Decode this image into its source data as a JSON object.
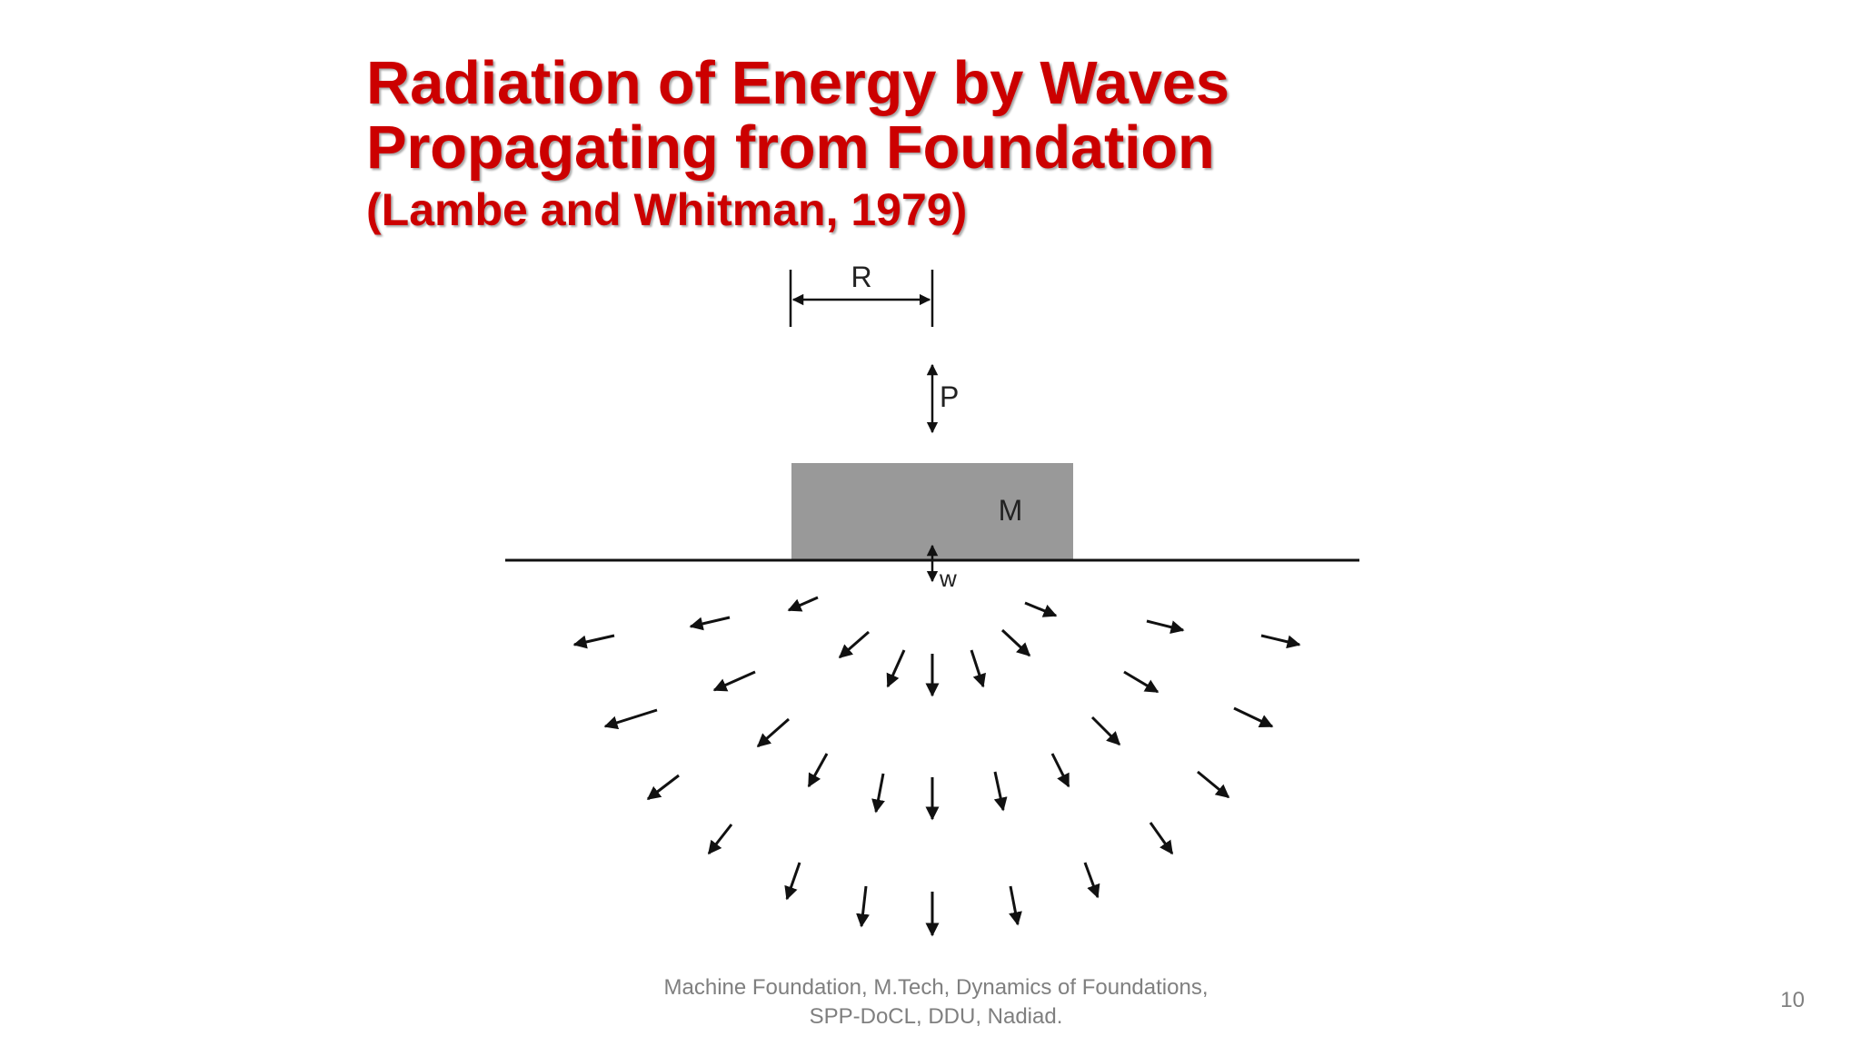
{
  "slide": {
    "title_line1": "Radiation of Energy by Waves",
    "title_line2": "Propagating from Foundation",
    "title_citation": "(Lambe and Whitman, 1979)",
    "footer_line1": "Machine Foundation, M.Tech, Dynamics of Foundations,",
    "footer_line2": "SPP-DoCL, DDU, Nadiad.",
    "page_number": "10",
    "title_color": "#cc0000"
  },
  "diagram": {
    "label_radius": "R",
    "label_force": "P",
    "label_mass": "M",
    "label_displacement": "w",
    "mass_fill": "#999999"
  }
}
